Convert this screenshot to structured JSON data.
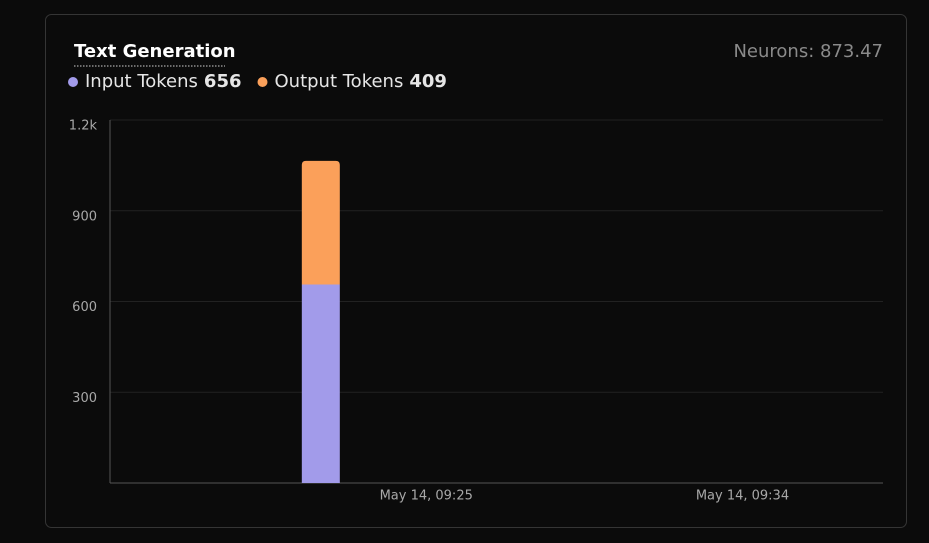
{
  "chart_data": {
    "type": "stacked-bar",
    "title": "Text Generation",
    "neurons": "Neurons: 873.47",
    "x": [
      "May 14, 09:22"
    ],
    "series": [
      {
        "name": "Input Tokens",
        "color": "#a29bea",
        "values": [
          656
        ]
      },
      {
        "name": "Output Tokens",
        "color": "#fba05a",
        "values": [
          409
        ]
      }
    ],
    "xlim": [
      "May 14, 09:16",
      "May 14, 09:38"
    ],
    "xticks": [
      "May 14, 09:25",
      "May 14, 09:34"
    ],
    "ylim": [
      0,
      1200
    ],
    "yticks": [
      300,
      600,
      900,
      {
        "value": 1200,
        "label": "1.2k"
      }
    ],
    "grid": true
  }
}
